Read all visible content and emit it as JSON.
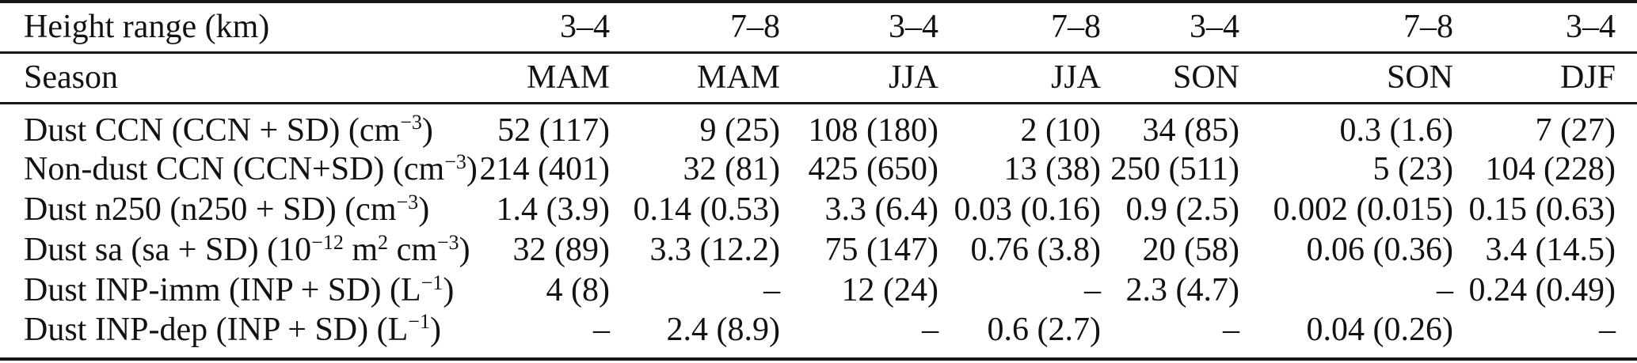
{
  "table": {
    "header": {
      "height_range_label": "Height range (km)",
      "height_ranges": [
        "3–4",
        "7–8",
        "3–4",
        "7–8",
        "3–4",
        "7–8",
        "3–4"
      ],
      "season_label": "Season",
      "seasons": [
        "MAM",
        "MAM",
        "JJA",
        "JJA",
        "SON",
        "SON",
        "DJF"
      ]
    },
    "rows": [
      {
        "label_rich": [
          {
            "t": "Dust CCN (CCN + SD) (cm"
          },
          {
            "sup": "−3"
          },
          {
            "t": ")"
          }
        ],
        "values": [
          "52 (117)",
          "9 (25)",
          "108 (180)",
          "2 (10)",
          "34 (85)",
          "0.3 (1.6)",
          "7 (27)"
        ]
      },
      {
        "label_rich": [
          {
            "t": "Non-dust CCN (CCN+SD) (cm"
          },
          {
            "sup": "−3"
          },
          {
            "t": ")"
          }
        ],
        "values": [
          "214 (401)",
          "32 (81)",
          "425 (650)",
          "13 (38)",
          "250 (511)",
          "5 (23)",
          "104 (228)"
        ]
      },
      {
        "label_rich": [
          {
            "t": "Dust n250 (n250 + SD) (cm"
          },
          {
            "sup": "−3"
          },
          {
            "t": ")"
          }
        ],
        "values": [
          "1.4 (3.9)",
          "0.14 (0.53)",
          "3.3 (6.4)",
          "0.03 (0.16)",
          "0.9 (2.5)",
          "0.002 (0.015)",
          "0.15 (0.63)"
        ]
      },
      {
        "label_rich": [
          {
            "t": "Dust sa (sa + SD) (10"
          },
          {
            "sup": "−12"
          },
          {
            "t": " m"
          },
          {
            "sup": "2"
          },
          {
            "t": " cm"
          },
          {
            "sup": "−3"
          },
          {
            "t": ")"
          }
        ],
        "values": [
          "32 (89)",
          "3.3 (12.2)",
          "75 (147)",
          "0.76 (3.8)",
          "20 (58)",
          "0.06 (0.36)",
          "3.4 (14.5)"
        ]
      },
      {
        "label_rich": [
          {
            "t": "Dust INP-imm (INP + SD) (L"
          },
          {
            "sup": "−1"
          },
          {
            "t": ")"
          }
        ],
        "values": [
          "4 (8)",
          "–",
          "12 (24)",
          "–",
          "2.3 (4.7)",
          "–",
          "0.24 (0.49)"
        ]
      },
      {
        "label_rich": [
          {
            "t": "Dust INP-dep (INP + SD) (L"
          },
          {
            "sup": "−1"
          },
          {
            "t": ")"
          }
        ],
        "values": [
          "–",
          "2.4 (8.9)",
          "–",
          "0.6 (2.7)",
          "–",
          "0.04 (0.26)",
          "–"
        ]
      }
    ]
  },
  "chart_data": {
    "type": "table",
    "title": "",
    "columns": [
      "Height range (km)",
      "3–4",
      "7–8",
      "3–4",
      "7–8",
      "3–4",
      "7–8",
      "3–4"
    ],
    "season_row": [
      "Season",
      "MAM",
      "MAM",
      "JJA",
      "JJA",
      "SON",
      "SON",
      "DJF"
    ],
    "rows": [
      [
        "Dust CCN (CCN + SD) (cm⁻³)",
        "52 (117)",
        "9 (25)",
        "108 (180)",
        "2 (10)",
        "34 (85)",
        "0.3 (1.6)",
        "7 (27)"
      ],
      [
        "Non-dust CCN (CCN+SD) (cm⁻³)",
        "214 (401)",
        "32 (81)",
        "425 (650)",
        "13 (38)",
        "250 (511)",
        "5 (23)",
        "104 (228)"
      ],
      [
        "Dust n250 (n250 + SD) (cm⁻³)",
        "1.4 (3.9)",
        "0.14 (0.53)",
        "3.3 (6.4)",
        "0.03 (0.16)",
        "0.9 (2.5)",
        "0.002 (0.015)",
        "0.15 (0.63)"
      ],
      [
        "Dust sa (sa + SD) (10⁻¹² m² cm⁻³)",
        "32 (89)",
        "3.3 (12.2)",
        "75 (147)",
        "0.76 (3.8)",
        "20 (58)",
        "0.06 (0.36)",
        "3.4 (14.5)"
      ],
      [
        "Dust INP-imm (INP + SD) (L⁻¹)",
        "4 (8)",
        "–",
        "12 (24)",
        "–",
        "2.3 (4.7)",
        "–",
        "0.24 (0.49)"
      ],
      [
        "Dust INP-dep (INP + SD) (L⁻¹)",
        "–",
        "2.4 (8.9)",
        "–",
        "0.6 (2.7)",
        "–",
        "0.04 (0.26)",
        "–"
      ]
    ]
  }
}
